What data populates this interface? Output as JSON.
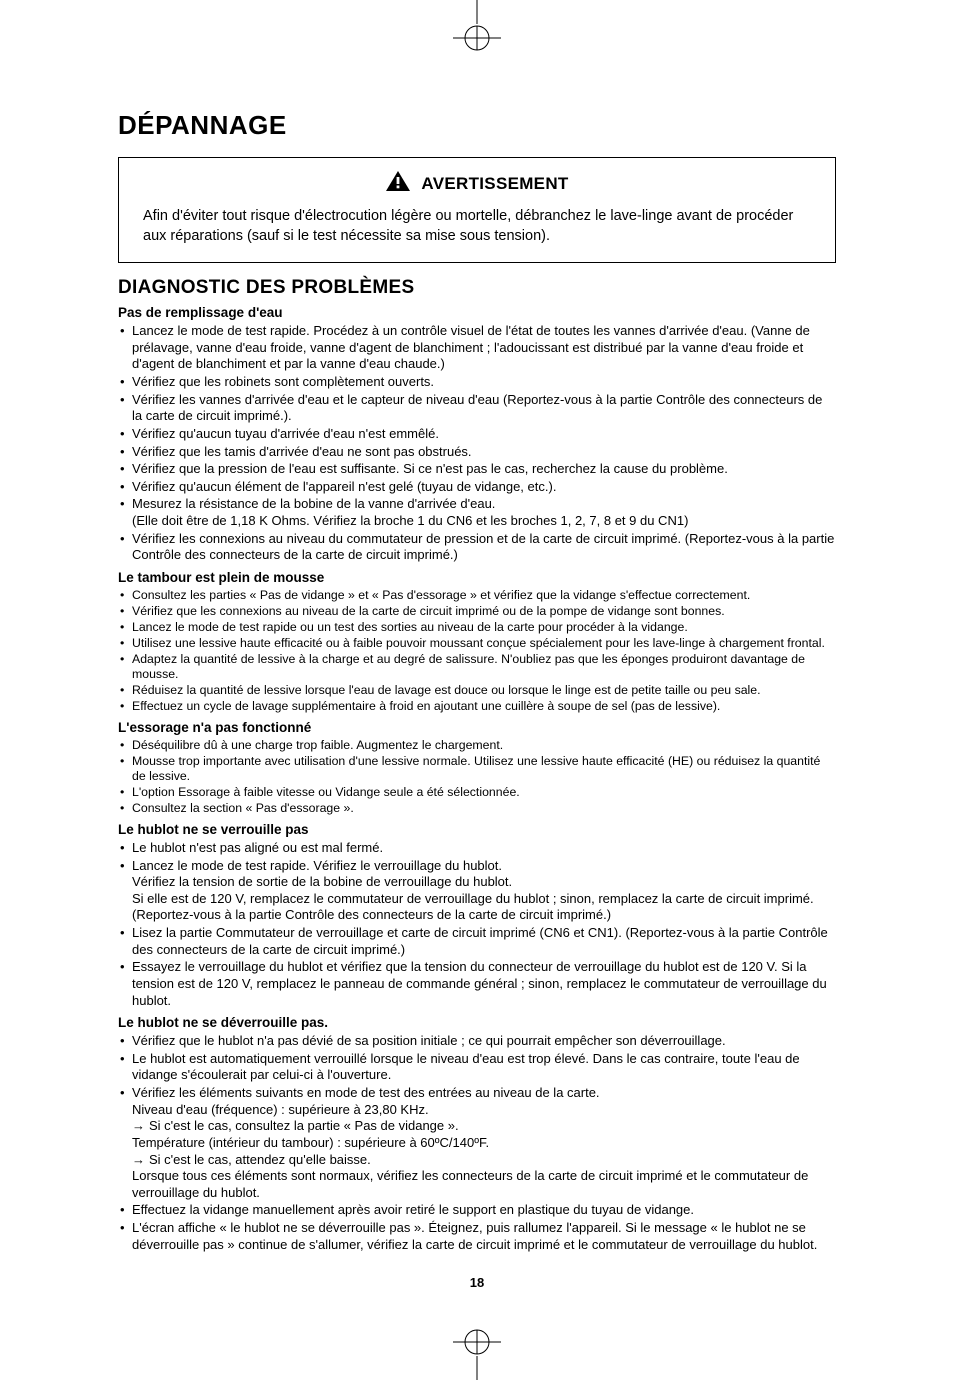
{
  "page_number": "18",
  "title": "DÉPANNAGE",
  "warning": {
    "label": "AVERTISSEMENT",
    "text": "Afin d'éviter tout risque d'électrocution légère ou mortelle, débranchez le lave-linge avant de procéder aux réparations (sauf si le test nécessite sa mise sous tension)."
  },
  "diag_heading": "DIAGNOSTIC DES PROBLÈMES",
  "sections": [
    {
      "heading": "Pas de remplissage d'eau",
      "items": [
        "Lancez le mode de test rapide. Procédez à un contrôle visuel de l'état de toutes les vannes d'arrivée d'eau. (Vanne de prélavage, vanne d'eau froide, vanne d'agent de blanchiment ; l'adoucissant est distribué par la vanne d'eau froide et d'agent de blanchiment et par la vanne d'eau chaude.)",
        "Vérifiez que les robinets sont complètement ouverts.",
        "Vérifiez les vannes d'arrivée d'eau et le capteur de niveau d'eau (Reportez-vous à la partie Contrôle des connecteurs de la carte de circuit imprimé.).",
        "Vérifiez qu'aucun tuyau d'arrivée d'eau n'est emmêlé.",
        "Vérifiez que les tamis d'arrivée d'eau ne sont pas obstrués.",
        "Vérifiez que la pression de l'eau est suffisante. Si ce n'est pas le cas, recherchez la cause du problème.",
        "Vérifiez qu'aucun élément de l'appareil n'est gelé (tuyau de vidange, etc.).",
        "Mesurez la résistance de la bobine de la vanne d'arrivée d'eau.\n(Elle doit être de 1,18 K Ohms. Vérifiez la broche 1 du CN6 et les broches 1, 2, 7, 8 et 9 du CN1)",
        "Vérifiez les connexions au niveau du commutateur de pression et de la carte de circuit imprimé. (Reportez-vous à la partie Contrôle des connecteurs de la carte de circuit imprimé.)"
      ]
    },
    {
      "heading": "Le tambour est plein de mousse",
      "tight": true,
      "items": [
        "Consultez les parties « Pas de vidange » et « Pas d'essorage » et vérifiez que la vidange s'effectue correctement.",
        "Vérifiez que les connexions au niveau de la carte de circuit imprimé ou de la pompe de vidange sont bonnes.",
        "Lancez le mode de test rapide ou un test des sorties au niveau de la carte pour procéder à la vidange.",
        "Utilisez une lessive haute efficacité ou à faible pouvoir moussant conçue spécialement pour les lave-linge à chargement frontal.",
        "Adaptez la quantité de lessive à la charge et au degré de salissure. N'oubliez pas que les éponges produiront davantage de mousse.",
        "Réduisez la quantité de lessive lorsque l'eau de lavage est douce ou lorsque le linge est de petite taille ou peu sale.",
        "Effectuez un cycle de lavage supplémentaire à froid en ajoutant une cuillère à soupe de sel (pas de lessive)."
      ]
    },
    {
      "heading": "L'essorage n'a pas fonctionné",
      "tight": true,
      "items": [
        "Déséquilibre dû à une charge trop faible. Augmentez le chargement.",
        "Mousse trop importante avec utilisation d'une lessive normale.  Utilisez une lessive haute efficacité (HE) ou réduisez la quantité de lessive.",
        "L'option Essorage à faible vitesse ou Vidange seule a été sélectionnée.",
        "Consultez la section « Pas d'essorage »."
      ]
    },
    {
      "heading": "Le hublot ne se verrouille pas",
      "items": [
        "Le hublot n'est pas aligné ou est mal fermé.",
        "Lancez le mode de test rapide. Vérifiez le verrouillage du hublot.\nVérifiez la tension de sortie de la bobine de verrouillage du hublot.\nSi elle est de 120 V, remplacez le commutateur de verrouillage du hublot ; sinon, remplacez la carte de circuit imprimé. (Reportez-vous à la partie Contrôle des connecteurs de la carte de circuit imprimé.)",
        "Lisez la partie Commutateur de verrouillage et carte de circuit imprimé (CN6 et CN1).  (Reportez-vous à la partie Contrôle des connecteurs de la carte de circuit imprimé.)",
        "Essayez le verrouillage du hublot et vérifiez que la tension du connecteur de verrouillage du hublot est de 120 V. Si la tension est de 120 V, remplacez le panneau de commande général ; sinon, remplacez le commutateur de verrouillage du hublot."
      ]
    },
    {
      "heading": "Le hublot ne se déverrouille pas.",
      "items": [
        "Vérifiez que le hublot n'a pas dévié de sa position initiale ; ce qui pourrait empêcher son déverrouillage.",
        "Le hublot est automatiquement verrouillé lorsque le niveau d'eau est trop élevé. Dans le cas contraire, toute l'eau de vidange s'écoulerait par celui-ci à l'ouverture.",
        {
          "type": "complex",
          "lines": [
            {
              "t": "plain",
              "text": "Vérifiez les éléments suivants en mode de test des entrées au niveau de la carte."
            },
            {
              "t": "plain",
              "text": "Niveau d'eau (fréquence) : supérieure à 23,80 KHz."
            },
            {
              "t": "arrow",
              "text": "Si c'est le cas, consultez la partie « Pas de vidange »."
            },
            {
              "t": "plain",
              "text": "Température (intérieur du tambour) : supérieure à 60ºC/140ºF."
            },
            {
              "t": "arrow",
              "text": "Si c'est le cas, attendez qu'elle baisse."
            },
            {
              "t": "plain",
              "text": "Lorsque tous ces éléments sont normaux, vérifiez les connecteurs de la carte de circuit imprimé et le commutateur de verrouillage du hublot."
            }
          ]
        },
        "Effectuez la vidange manuellement après avoir retiré le support en plastique du tuyau de vidange.",
        "L'écran affiche « le hublot ne se déverrouille pas ». Éteignez, puis rallumez l'appareil. Si le message « le hublot ne se déverrouille pas » continue de s'allumer, vérifiez la carte de circuit imprimé et le commutateur de verrouillage du hublot."
      ]
    }
  ]
}
